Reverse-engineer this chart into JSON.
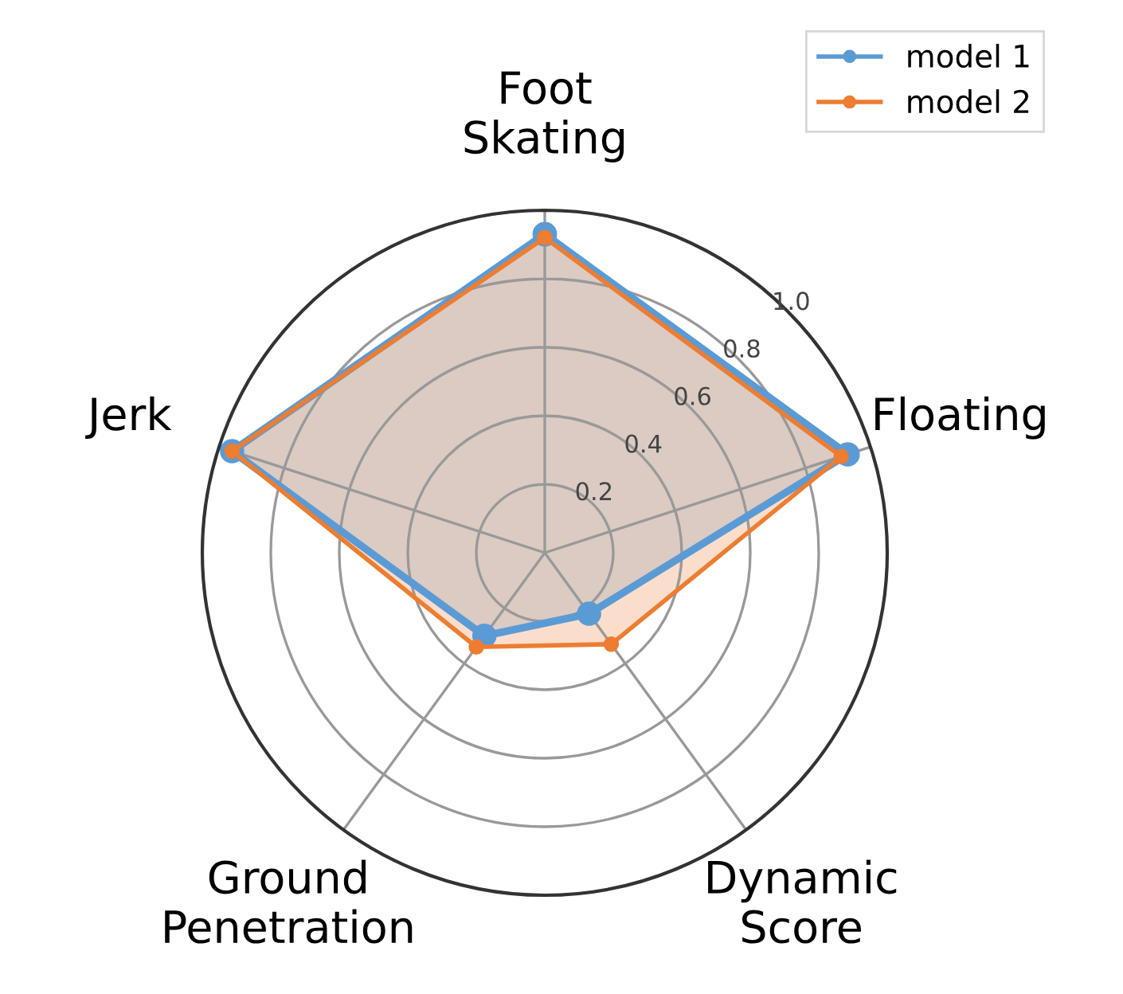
{
  "chart_data": {
    "type": "radar",
    "categories": [
      "Foot\nSkating",
      "Floating",
      "Dynamic\nScore",
      "Ground\nPenetration",
      "Jerk"
    ],
    "series": [
      {
        "name": "model 1",
        "color": "#5b9bd5",
        "values": [
          0.93,
          0.93,
          0.22,
          0.3,
          0.96
        ]
      },
      {
        "name": "model 2",
        "color": "#ed7d31",
        "values": [
          0.92,
          0.91,
          0.33,
          0.34,
          0.96
        ]
      }
    ],
    "ylim": [
      0,
      1.0
    ],
    "yticks": [
      0.2,
      0.4,
      0.6,
      0.8,
      {
        "value": 1.0,
        "label": "1.0"
      }
    ],
    "grid": true,
    "legend": "top right",
    "marker": "circle",
    "line_style": "solid"
  }
}
